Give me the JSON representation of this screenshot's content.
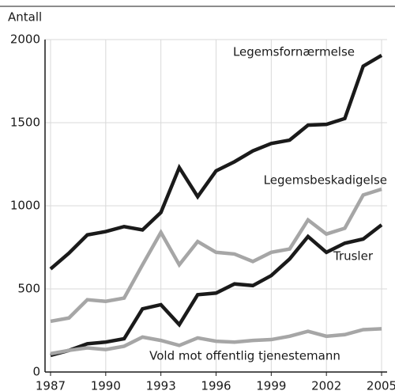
{
  "chart_data": {
    "type": "line",
    "y_label": "Antall",
    "x": [
      1987,
      1988,
      1989,
      1990,
      1991,
      1992,
      1993,
      1994,
      1995,
      1996,
      1997,
      1998,
      1999,
      2000,
      2001,
      2002,
      2003,
      2004,
      2005
    ],
    "series": [
      {
        "name": "Legemsfornærmelse",
        "color": "#1a1a1a",
        "values": [
          620,
          715,
          825,
          845,
          875,
          855,
          960,
          1230,
          1055,
          1210,
          1265,
          1330,
          1375,
          1395,
          1485,
          1490,
          1525,
          1840,
          1905
        ]
      },
      {
        "name": "Legemsbeskadigelse",
        "color": "#a6a6a6",
        "values": [
          305,
          325,
          435,
          425,
          445,
          645,
          840,
          645,
          785,
          720,
          710,
          665,
          720,
          740,
          915,
          830,
          865,
          1065,
          1100
        ]
      },
      {
        "name": "Trusler",
        "color": "#1a1a1a",
        "values": [
          100,
          130,
          170,
          180,
          200,
          380,
          405,
          285,
          465,
          475,
          530,
          520,
          580,
          680,
          815,
          720,
          775,
          800,
          885
        ]
      },
      {
        "name": "Vold mot offentlig tjenestemann",
        "color": "#a6a6a6",
        "values": [
          110,
          130,
          145,
          135,
          155,
          210,
          190,
          160,
          205,
          185,
          180,
          190,
          195,
          215,
          245,
          215,
          225,
          255,
          260
        ]
      }
    ],
    "xlim": [
      1986.7,
      2005.3
    ],
    "xticks": [
      1987,
      1990,
      1993,
      1996,
      1999,
      2002,
      2005
    ],
    "ylim": [
      0,
      2000
    ],
    "yticks": [
      0,
      500,
      1000,
      1500,
      2000
    ],
    "grid": true
  }
}
